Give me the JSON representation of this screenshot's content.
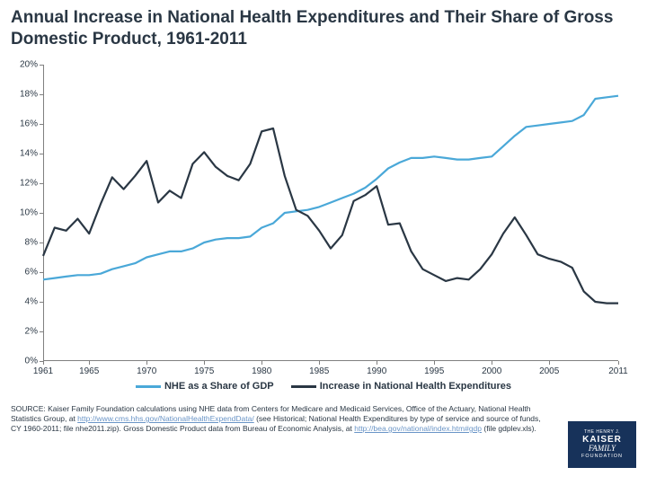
{
  "title": "Annual Increase in National Health Expenditures and Their Share of Gross Domestic Product, 1961-2011",
  "chart": {
    "type": "line",
    "xlim": [
      1961,
      2011
    ],
    "ylim": [
      0,
      0.2
    ],
    "ytick_step": 0.02,
    "yticks": [
      "0%",
      "2%",
      "4%",
      "6%",
      "8%",
      "10%",
      "12%",
      "14%",
      "16%",
      "18%",
      "20%"
    ],
    "xtick_years": [
      1961,
      1965,
      1970,
      1975,
      1980,
      1985,
      1990,
      1995,
      2000,
      2005,
      2011
    ],
    "background_color": "#ffffff",
    "axis_color": "#808080",
    "series": [
      {
        "name": "NHE as a Share of GDP",
        "color": "#4aa8d8",
        "line_width": 2.2,
        "data": [
          [
            1961,
            0.055
          ],
          [
            1962,
            0.056
          ],
          [
            1963,
            0.057
          ],
          [
            1964,
            0.058
          ],
          [
            1965,
            0.058
          ],
          [
            1966,
            0.059
          ],
          [
            1967,
            0.062
          ],
          [
            1968,
            0.064
          ],
          [
            1969,
            0.066
          ],
          [
            1970,
            0.07
          ],
          [
            1971,
            0.072
          ],
          [
            1972,
            0.074
          ],
          [
            1973,
            0.074
          ],
          [
            1974,
            0.076
          ],
          [
            1975,
            0.08
          ],
          [
            1976,
            0.082
          ],
          [
            1977,
            0.083
          ],
          [
            1978,
            0.083
          ],
          [
            1979,
            0.084
          ],
          [
            1980,
            0.09
          ],
          [
            1981,
            0.093
          ],
          [
            1982,
            0.1
          ],
          [
            1983,
            0.101
          ],
          [
            1984,
            0.102
          ],
          [
            1985,
            0.104
          ],
          [
            1986,
            0.107
          ],
          [
            1987,
            0.11
          ],
          [
            1988,
            0.113
          ],
          [
            1989,
            0.117
          ],
          [
            1990,
            0.123
          ],
          [
            1991,
            0.13
          ],
          [
            1992,
            0.134
          ],
          [
            1993,
            0.137
          ],
          [
            1994,
            0.137
          ],
          [
            1995,
            0.138
          ],
          [
            1996,
            0.137
          ],
          [
            1997,
            0.136
          ],
          [
            1998,
            0.136
          ],
          [
            1999,
            0.137
          ],
          [
            2000,
            0.138
          ],
          [
            2001,
            0.145
          ],
          [
            2002,
            0.152
          ],
          [
            2003,
            0.158
          ],
          [
            2004,
            0.159
          ],
          [
            2005,
            0.16
          ],
          [
            2006,
            0.161
          ],
          [
            2007,
            0.162
          ],
          [
            2008,
            0.166
          ],
          [
            2009,
            0.177
          ],
          [
            2010,
            0.178
          ],
          [
            2011,
            0.179
          ]
        ]
      },
      {
        "name": "Increase in National Health Expenditures",
        "color": "#2a3744",
        "line_width": 2.2,
        "data": [
          [
            1961,
            0.071
          ],
          [
            1962,
            0.09
          ],
          [
            1963,
            0.088
          ],
          [
            1964,
            0.096
          ],
          [
            1965,
            0.086
          ],
          [
            1966,
            0.106
          ],
          [
            1967,
            0.124
          ],
          [
            1968,
            0.116
          ],
          [
            1969,
            0.125
          ],
          [
            1970,
            0.135
          ],
          [
            1971,
            0.107
          ],
          [
            1972,
            0.115
          ],
          [
            1973,
            0.11
          ],
          [
            1974,
            0.133
          ],
          [
            1975,
            0.141
          ],
          [
            1976,
            0.131
          ],
          [
            1977,
            0.125
          ],
          [
            1978,
            0.122
          ],
          [
            1979,
            0.133
          ],
          [
            1980,
            0.155
          ],
          [
            1981,
            0.157
          ],
          [
            1982,
            0.125
          ],
          [
            1983,
            0.102
          ],
          [
            1984,
            0.098
          ],
          [
            1985,
            0.088
          ],
          [
            1986,
            0.076
          ],
          [
            1987,
            0.085
          ],
          [
            1988,
            0.108
          ],
          [
            1989,
            0.112
          ],
          [
            1990,
            0.118
          ],
          [
            1991,
            0.092
          ],
          [
            1992,
            0.093
          ],
          [
            1993,
            0.074
          ],
          [
            1994,
            0.062
          ],
          [
            1995,
            0.058
          ],
          [
            1996,
            0.054
          ],
          [
            1997,
            0.056
          ],
          [
            1998,
            0.055
          ],
          [
            1999,
            0.062
          ],
          [
            2000,
            0.072
          ],
          [
            2001,
            0.086
          ],
          [
            2002,
            0.097
          ],
          [
            2003,
            0.085
          ],
          [
            2004,
            0.072
          ],
          [
            2005,
            0.069
          ],
          [
            2006,
            0.067
          ],
          [
            2007,
            0.063
          ],
          [
            2008,
            0.047
          ],
          [
            2009,
            0.04
          ],
          [
            2010,
            0.039
          ],
          [
            2011,
            0.039
          ]
        ]
      }
    ]
  },
  "legend": {
    "items": [
      {
        "label": "NHE as a Share of GDP",
        "color": "#4aa8d8"
      },
      {
        "label": "Increase in National Health Expenditures",
        "color": "#2a3744"
      }
    ]
  },
  "source": {
    "prefix": "SOURCE: Kaiser Family Foundation calculations using NHE data from Centers for Medicare and Medicaid Services, Office of the Actuary, National Health Statistics Group, at ",
    "link1": "http://www.cms.hhs.gov/NationalHealthExpendData/",
    "mid": " (see Historical; National Health Expenditures by type of service and source of funds, CY 1960-2011; file nhe2011.zip). Gross Domestic Product data from Bureau of Economic Analysis, at ",
    "link2": "http://bea.gov/national/index.htm#gdp",
    "suffix": " (file gdplev.xls)."
  },
  "logo": {
    "line1": "THE HENRY J.",
    "line2": "KAISER",
    "line3": "FAMILY",
    "line4": "FOUNDATION"
  }
}
